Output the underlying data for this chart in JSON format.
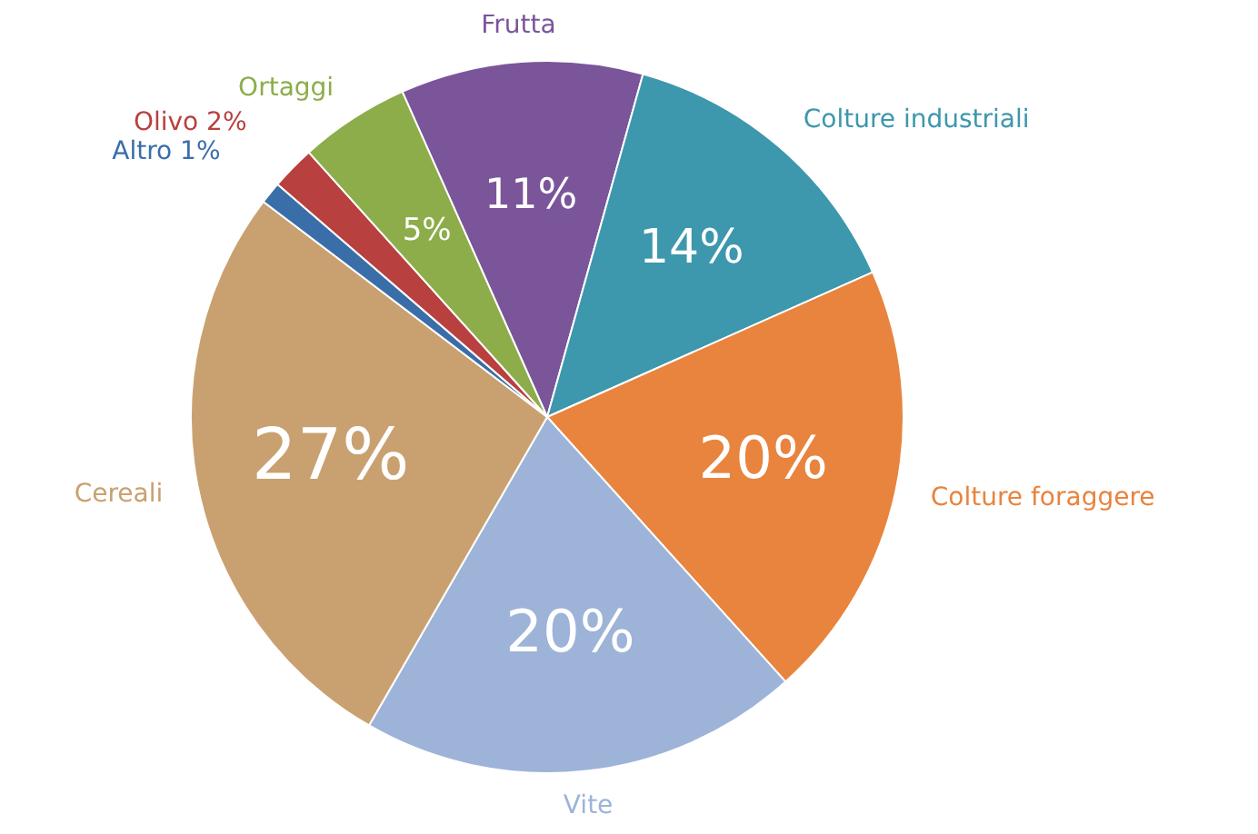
{
  "chart_data": {
    "type": "pie",
    "categories": [
      "Frutta",
      "Colture industriali",
      "Colture foraggere",
      "Vite",
      "Cereali",
      "Altro",
      "Olivo",
      "Ortaggi"
    ],
    "values": [
      11,
      14,
      20,
      20,
      27,
      1,
      2,
      5
    ],
    "value_labels": [
      "11%",
      "14%",
      "20%",
      "20%",
      "27%",
      "1%",
      "2%",
      "5%"
    ],
    "colors": [
      "#7b559a",
      "#3d97ad",
      "#e8843e",
      "#9db3d8",
      "#c9a170",
      "#3a6ea8",
      "#b8403f",
      "#8cad4a"
    ],
    "legend": false
  }
}
